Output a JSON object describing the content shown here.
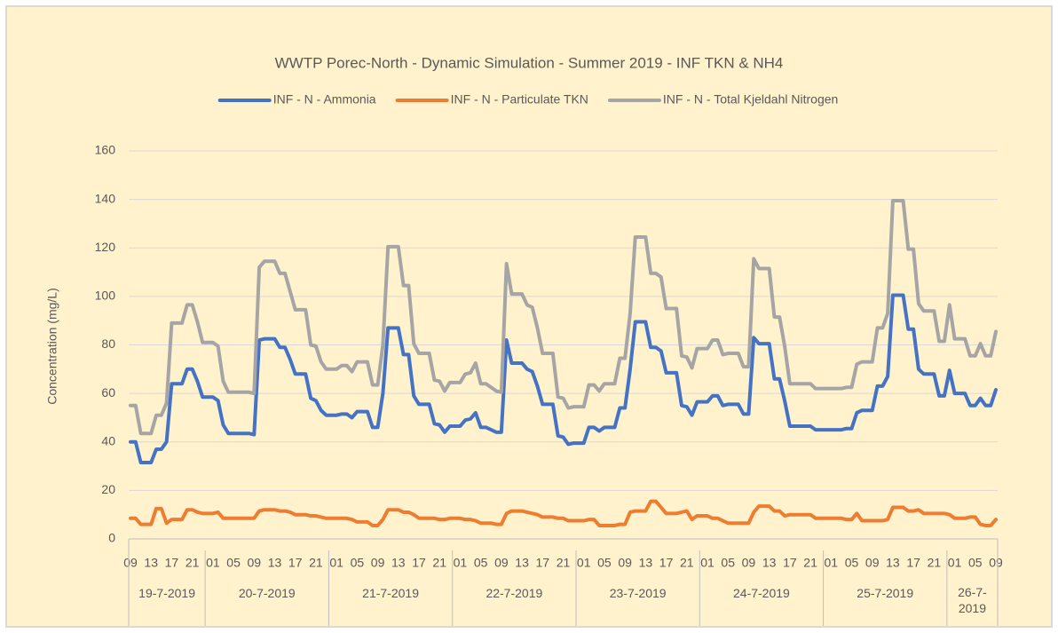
{
  "chart_data": {
    "type": "line",
    "title": "WWTP Porec-North - Dynamic Simulation - Summer 2019 - INF TKN & NH4",
    "y_label": "Concentration (mg/L)",
    "ylim": [
      0,
      160
    ],
    "yticks": [
      0,
      20,
      40,
      60,
      80,
      100,
      120,
      140,
      160
    ],
    "grid": true,
    "legend": "top",
    "categories": [
      "09",
      null,
      null,
      null,
      "13",
      null,
      null,
      null,
      "17",
      null,
      null,
      null,
      "21",
      null,
      null,
      null,
      "01",
      null,
      null,
      null,
      "05",
      null,
      null,
      null,
      "09",
      null,
      null,
      null,
      "13",
      null,
      null,
      null,
      "17",
      null,
      null,
      null,
      "21",
      null,
      null,
      null,
      "01",
      null,
      null,
      null,
      "05",
      null,
      null,
      null,
      "09",
      null,
      null,
      null,
      "13",
      null,
      null,
      null,
      "17",
      null,
      null,
      null,
      "21",
      null,
      null,
      null,
      "01",
      null,
      null,
      null,
      "05",
      null,
      null,
      null,
      "09",
      null,
      null,
      null,
      "13",
      null,
      null,
      null,
      "17",
      null,
      null,
      null,
      "21",
      null,
      null,
      null,
      "01",
      null,
      null,
      null,
      "05",
      null,
      null,
      null,
      "09",
      null,
      null,
      null,
      "13",
      null,
      null,
      null,
      "17",
      null,
      null,
      null,
      "21",
      null,
      null,
      null,
      "01",
      null,
      null,
      null,
      "05",
      null,
      null,
      null,
      "09",
      null,
      null,
      null,
      "13",
      null,
      null,
      null,
      "17",
      null,
      null,
      null,
      "21",
      null,
      null,
      null,
      "01",
      null,
      null,
      null,
      "05",
      null,
      null,
      null,
      "09",
      null,
      null,
      null,
      "13",
      null,
      null,
      null,
      "17",
      null,
      null,
      null,
      "21",
      null,
      null,
      null,
      "01",
      null,
      null,
      null,
      "05",
      null,
      null,
      null,
      "09"
    ],
    "groups": [
      {
        "label": "19-7-2019",
        "count": 15
      },
      {
        "label": "20-7-2019",
        "count": 24
      },
      {
        "label": "21-7-2019",
        "count": 24
      },
      {
        "label": "22-7-2019",
        "count": 24
      },
      {
        "label": "23-7-2019",
        "count": 24
      },
      {
        "label": "24-7-2019",
        "count": 24
      },
      {
        "label": "25-7-2019",
        "count": 24
      },
      {
        "label": "26-7-2019",
        "count": 10
      }
    ],
    "series": [
      {
        "name": "INF - N - Ammonia",
        "color": "#4472c4",
        "values": [
          40,
          40,
          31.5,
          31.5,
          31.5,
          37,
          37,
          40,
          64,
          64,
          64,
          70,
          70,
          65,
          58.5,
          58.5,
          58.5,
          57,
          47,
          43.5,
          43.5,
          43.5,
          43.5,
          43.5,
          43,
          82,
          82.5,
          82.5,
          82.5,
          79,
          79,
          74,
          68,
          68,
          68,
          58,
          57,
          53,
          51,
          51,
          51,
          51.5,
          51.5,
          50,
          52.5,
          52.5,
          52.5,
          46,
          46,
          60,
          87,
          87,
          87,
          76,
          76,
          59,
          55.5,
          55.5,
          55.5,
          47.5,
          47,
          44,
          46.5,
          46.5,
          46.5,
          49,
          49.5,
          52,
          46,
          46,
          45,
          44,
          44,
          82,
          72.5,
          72.5,
          72.5,
          70,
          69,
          63,
          55.5,
          55.5,
          55.5,
          42.5,
          42,
          39,
          39.5,
          39.5,
          39.5,
          46,
          46,
          44.5,
          46,
          46,
          46,
          54,
          54,
          70,
          89.5,
          89.5,
          89.5,
          79,
          79,
          77.5,
          68.5,
          68.5,
          68.5,
          55,
          54.5,
          51,
          56.5,
          56.5,
          56.5,
          59,
          59,
          55,
          55.5,
          55.5,
          55.5,
          51.5,
          51.5,
          83,
          80.5,
          80.5,
          80.5,
          66,
          66,
          57,
          46.5,
          46.5,
          46.5,
          46.5,
          46.5,
          45,
          45,
          45,
          45,
          45,
          45,
          45.5,
          45.5,
          52,
          53,
          53,
          53,
          63,
          63,
          67,
          100.5,
          100.5,
          100.5,
          86.5,
          86.5,
          70,
          68,
          68,
          68,
          59,
          59,
          69.5,
          60,
          60,
          60,
          55,
          55,
          58,
          55,
          55,
          61.5
        ]
      },
      {
        "name": "INF - N - Particulate TKN",
        "color": "#ed7d31",
        "values": [
          8.5,
          8.5,
          6,
          6,
          6,
          12.5,
          12.5,
          6.5,
          8,
          8,
          8,
          12,
          12,
          11,
          10.5,
          10.5,
          10.5,
          11,
          8.5,
          8.5,
          8.5,
          8.5,
          8.5,
          8.5,
          8.5,
          11.5,
          12,
          12,
          12,
          11.5,
          11.5,
          11,
          10,
          10,
          10,
          9.5,
          9.5,
          9,
          8.5,
          8.5,
          8.5,
          8.5,
          8.5,
          8,
          7,
          7,
          7,
          5.5,
          5.5,
          8,
          12,
          12,
          12,
          11,
          11,
          10,
          8.5,
          8.5,
          8.5,
          8.5,
          8,
          8,
          8.5,
          8.5,
          8.5,
          8,
          8,
          7.5,
          6.5,
          6.5,
          6.5,
          6,
          6,
          10.5,
          11.5,
          11.5,
          11.5,
          11,
          10.5,
          10,
          9,
          9,
          9,
          8.5,
          8.5,
          7.5,
          7.5,
          7.5,
          7.5,
          8,
          8,
          5.5,
          5.5,
          5.5,
          5.5,
          6,
          6,
          11,
          11.5,
          11.5,
          11.5,
          15.5,
          15.5,
          13,
          10.5,
          10.5,
          10.5,
          11,
          11.5,
          8,
          9.5,
          9.5,
          9.5,
          8.5,
          8.5,
          7.5,
          6.5,
          6.5,
          6.5,
          6.5,
          6.5,
          11,
          13.5,
          13.5,
          13.5,
          11.5,
          11.5,
          9.5,
          10,
          10,
          10,
          10,
          10,
          8.5,
          8.5,
          8.5,
          8.5,
          8.5,
          8.5,
          8,
          8,
          10.5,
          7.5,
          7.5,
          7.5,
          7.5,
          7.5,
          8,
          13,
          13,
          13,
          11.5,
          11.5,
          12,
          10.5,
          10.5,
          10.5,
          10.5,
          10.5,
          10,
          8.5,
          8.5,
          8.5,
          9,
          9,
          6,
          5.5,
          5.5,
          8
        ]
      },
      {
        "name": "INF - N - Total Kjeldahl Nitrogen",
        "color": "#a5a5a5",
        "values": [
          55,
          55,
          43.5,
          43.5,
          43.5,
          51,
          51,
          56,
          89,
          89,
          89,
          96.5,
          96.5,
          89.5,
          81,
          81,
          81,
          79.5,
          65,
          60.5,
          60.5,
          60.5,
          60.5,
          60.5,
          60,
          112,
          114.5,
          114.5,
          114.5,
          109.5,
          109.5,
          102,
          94.5,
          94.5,
          94.5,
          80,
          79.5,
          73,
          70,
          70,
          70,
          71.5,
          71.5,
          69,
          73,
          73,
          73,
          63.5,
          63.5,
          80,
          120.5,
          120.5,
          120.5,
          104.5,
          104.5,
          80.5,
          76.5,
          76.5,
          76.5,
          65.5,
          65,
          61,
          64.5,
          64.5,
          64.5,
          68,
          68.5,
          72.5,
          64,
          64,
          62.5,
          61,
          60.5,
          113.5,
          101,
          101,
          101,
          96.5,
          95.5,
          87,
          76.5,
          76.5,
          76.5,
          58.5,
          58,
          54,
          54.5,
          54.5,
          54.5,
          63.5,
          63.5,
          61,
          64,
          64,
          64,
          74.5,
          74.5,
          93,
          124.5,
          124.5,
          124.5,
          109.5,
          109.5,
          108,
          95,
          95,
          95,
          75.5,
          75,
          70.5,
          78.5,
          78.5,
          78.5,
          82,
          82,
          76,
          76.5,
          76.5,
          76.5,
          71,
          71,
          115.5,
          111.5,
          111.5,
          111.5,
          91.5,
          91.5,
          79.5,
          64,
          64,
          64,
          64,
          64,
          62,
          62,
          62,
          62,
          62,
          62,
          62.5,
          62.5,
          72,
          73,
          73,
          73,
          87,
          87,
          93,
          139.5,
          139.5,
          139.5,
          119.5,
          119.5,
          97,
          94,
          94,
          94,
          81.5,
          81.5,
          96.5,
          82.5,
          82.5,
          82.5,
          75.5,
          75.5,
          80.5,
          75.5,
          75.5,
          85.5
        ]
      }
    ]
  }
}
